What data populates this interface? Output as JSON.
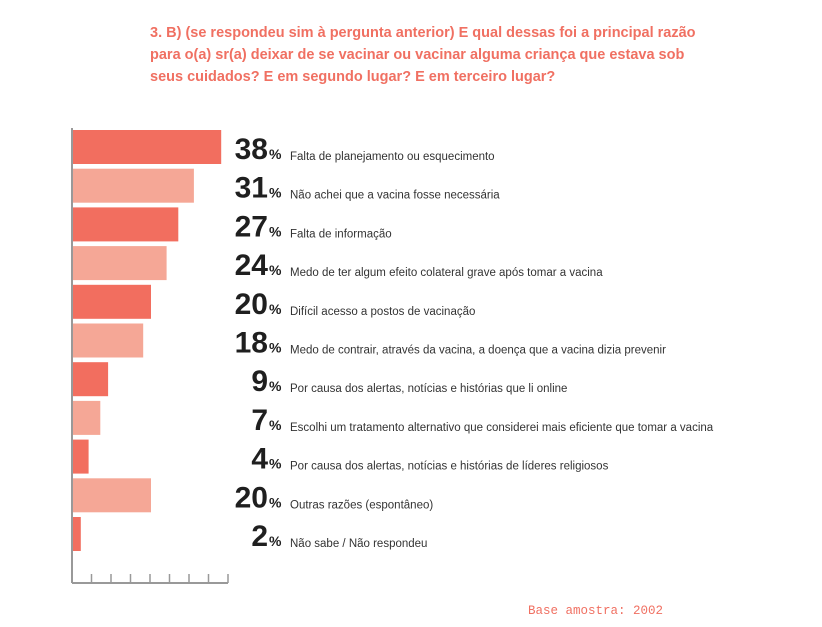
{
  "chart_data": {
    "type": "bar",
    "orientation": "horizontal",
    "title": "3. B) (se respondeu sim à pergunta anterior) E qual dessas foi a principal razão para o(a) sr(a) deixar de se vacinar ou vacinar alguma criança que estava sob seus cuidados? E em segundo lugar? E em terceiro lugar?",
    "unit": "%",
    "categories": [
      "Falta de planejamento ou esquecimento",
      "Não achei que a vacina fosse necessária",
      "Falta de informação",
      "Medo de ter algum efeito colateral grave após tomar a vacina",
      "Difícil acesso a postos de vacinação",
      "Medo de contrair, através da vacina, a doença que a vacina dizia prevenir",
      "Por causa dos alertas, notícias e histórias que li online",
      "Escolhi um tratamento alternativo que considerei mais eficiente que tomar a vacina",
      "Por causa dos alertas, notícias e histórias de líderes religiosos",
      "Outras razões (espontâneo)",
      "Não sabe / Não respondeu"
    ],
    "values": [
      38,
      31,
      27,
      24,
      20,
      18,
      9,
      7,
      4,
      20,
      2
    ],
    "xlim": [
      0,
      40
    ],
    "colors": [
      "#F26E5F",
      "#F5A796"
    ],
    "note": "Base amostra: 2002"
  }
}
